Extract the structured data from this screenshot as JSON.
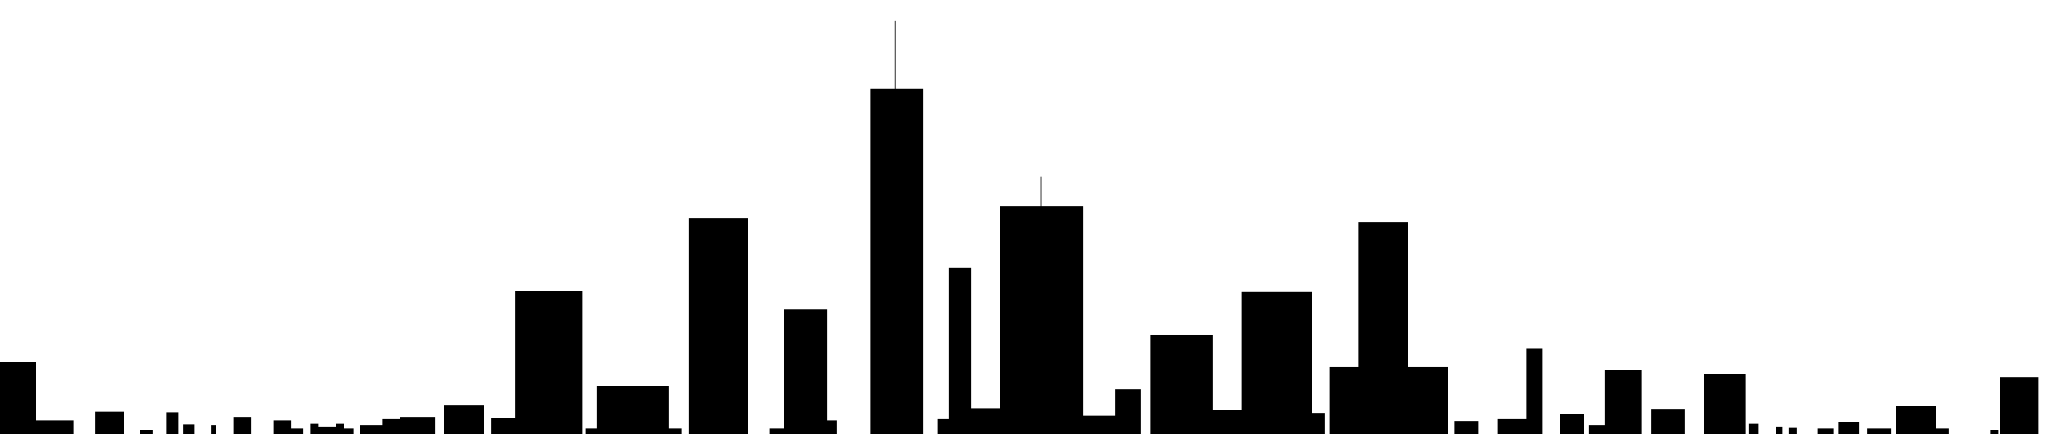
{
  "scene": {
    "background_color": "#ffffff",
    "silhouette_color": "#000000",
    "antenna_color": "#555555",
    "description_visible_text": ""
  }
}
